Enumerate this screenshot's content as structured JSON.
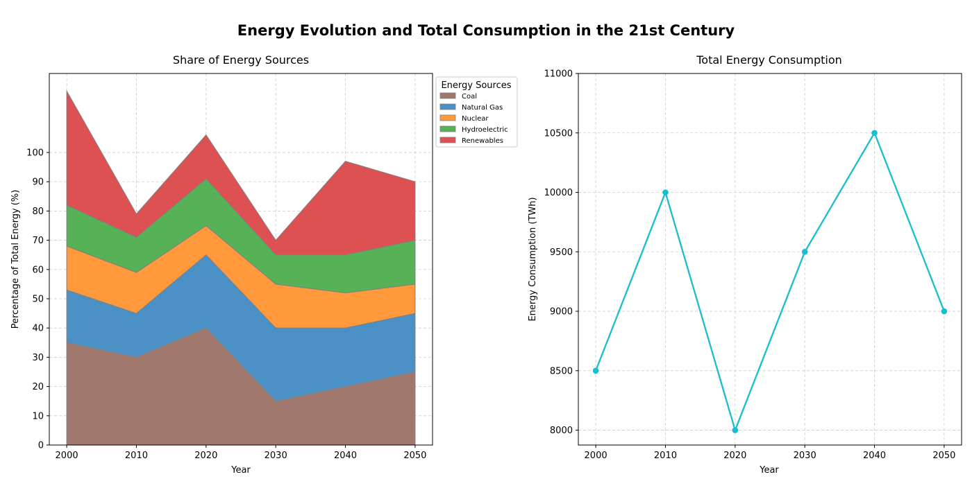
{
  "figure": {
    "title": "Energy Evolution and Total Consumption in the 21st Century"
  },
  "chart_data": [
    {
      "type": "area",
      "stacked": true,
      "title": "Share of Energy Sources",
      "xlabel": "Year",
      "ylabel": "Percentage of Total Energy (%)",
      "x": [
        2000,
        2010,
        2020,
        2030,
        2040,
        2050
      ],
      "xticks": [
        2000,
        2010,
        2020,
        2030,
        2040,
        2050
      ],
      "yticks": [
        0,
        10,
        20,
        30,
        40,
        50,
        60,
        70,
        80,
        90,
        100
      ],
      "xlim": [
        1997.5,
        2052.5
      ],
      "ylim": [
        0,
        127
      ],
      "grid": true,
      "legend": {
        "title": "Energy Sources",
        "placement": "outside upper right"
      },
      "series": [
        {
          "name": "Coal",
          "values": [
            35,
            30,
            40,
            15,
            20,
            25
          ],
          "color": "#a0776d"
        },
        {
          "name": "Natural Gas",
          "values": [
            18,
            15,
            25,
            25,
            20,
            20
          ],
          "color": "#4a90c4"
        },
        {
          "name": "Nuclear",
          "values": [
            15,
            14,
            10,
            15,
            12,
            10
          ],
          "color": "#ff993b"
        },
        {
          "name": "Hydroelectric",
          "values": [
            14,
            12,
            16,
            10,
            13,
            15
          ],
          "color": "#56b157"
        },
        {
          "name": "Renewables",
          "values": [
            39,
            8,
            15,
            5,
            32,
            20
          ],
          "color": "#de5152"
        }
      ]
    },
    {
      "type": "line",
      "title": "Total Energy Consumption",
      "xlabel": "Year",
      "ylabel": "Energy Consumption (TWh)",
      "x": [
        2000,
        2010,
        2020,
        2030,
        2040,
        2050
      ],
      "xticks": [
        2000,
        2010,
        2020,
        2030,
        2040,
        2050
      ],
      "yticks": [
        8000,
        8500,
        9000,
        9500,
        10000,
        10500,
        11000
      ],
      "xlim": [
        1997.5,
        2052.5
      ],
      "ylim": [
        7875,
        11000
      ],
      "grid": true,
      "series": [
        {
          "values": [
            8500,
            10000,
            8000,
            9500,
            10500,
            9000
          ],
          "color": "#17becf"
        }
      ]
    }
  ]
}
